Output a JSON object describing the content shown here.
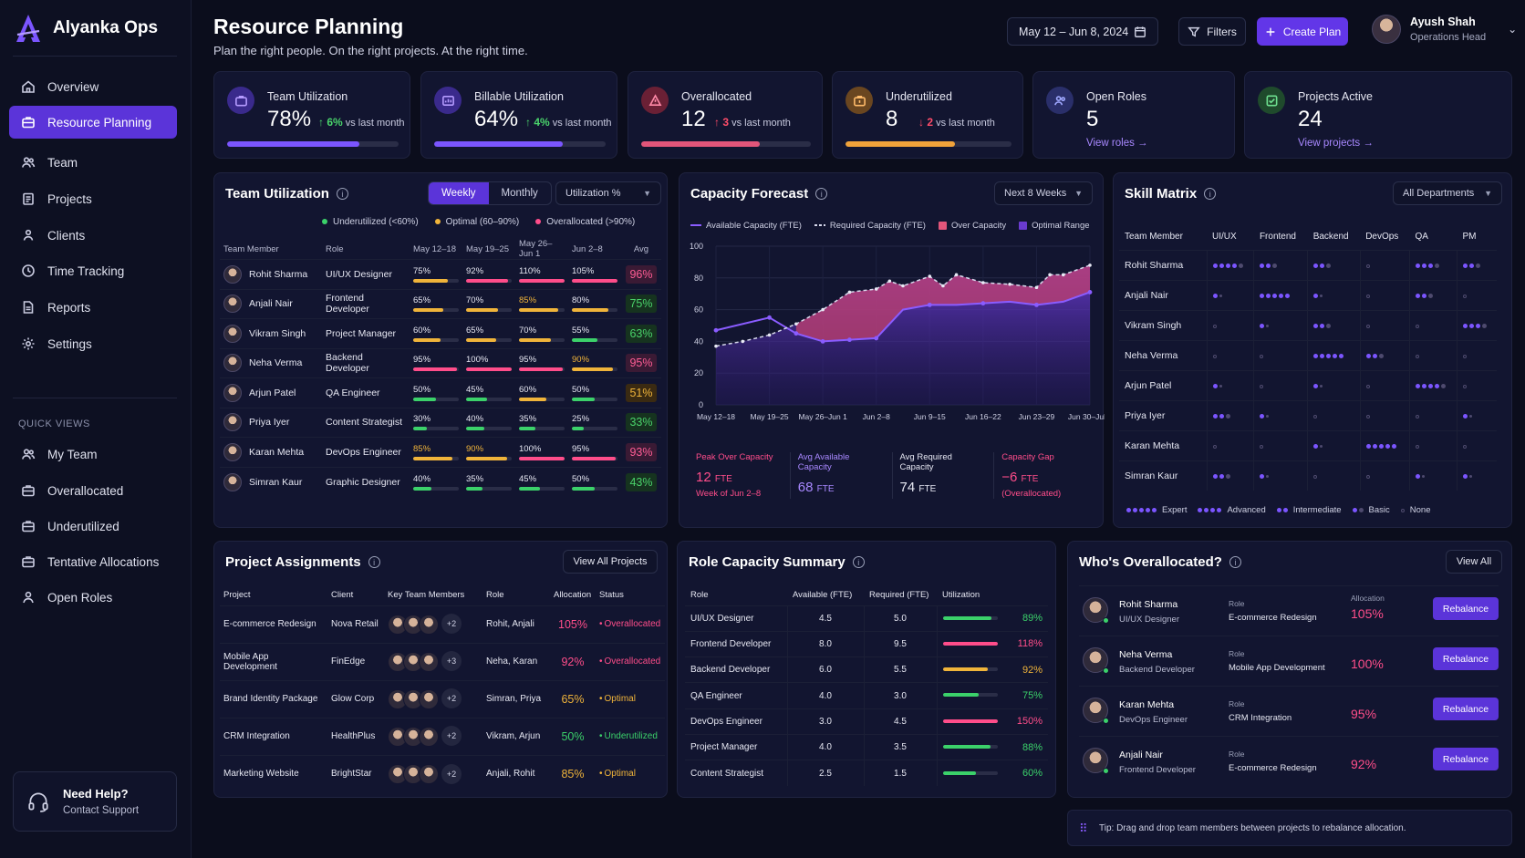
{
  "app": {
    "name": "Alyanka Ops"
  },
  "sidebar": {
    "items": [
      {
        "label": "Overview",
        "icon": "home-icon"
      },
      {
        "label": "Resource Planning",
        "icon": "briefcase-icon",
        "active": true
      },
      {
        "label": "Team",
        "icon": "users-icon"
      },
      {
        "label": "Projects",
        "icon": "clipboard-icon"
      },
      {
        "label": "Clients",
        "icon": "user-group-icon"
      },
      {
        "label": "Time Tracking",
        "icon": "clock-icon"
      },
      {
        "label": "Reports",
        "icon": "document-icon"
      },
      {
        "label": "Settings",
        "icon": "gear-icon"
      }
    ],
    "quick_views_title": "QUICK VIEWS",
    "quick_views": [
      {
        "label": "My Team",
        "icon": "users-icon"
      },
      {
        "label": "Overallocated",
        "icon": "briefcase-icon"
      },
      {
        "label": "Underutilized",
        "icon": "briefcase-icon"
      },
      {
        "label": "Tentative Allocations",
        "icon": "briefcase-icon"
      },
      {
        "label": "Open Roles",
        "icon": "user-icon"
      }
    ],
    "help_title": "Need Help?",
    "help_link": "Contact Support"
  },
  "header": {
    "title": "Resource Planning",
    "subtitle": "Plan the right people. On the right projects. At the right time.",
    "date_range": "May 12 – Jun 8, 2024",
    "filters_label": "Filters",
    "create_label": "Create Plan",
    "user_name": "Ayush Shah",
    "user_role": "Operations Head"
  },
  "kpis": [
    {
      "label": "Team Utilization",
      "value": "78%",
      "delta": "6%",
      "delta_dir": "up",
      "delta_note": "vs last month",
      "progress": 0.77,
      "color": "#7b55ff",
      "icon_bg": "#3a2a8c"
    },
    {
      "label": "Billable Utilization",
      "value": "64%",
      "delta": "4%",
      "delta_dir": "up",
      "delta_note": "vs last month",
      "progress": 0.75,
      "color": "#7b55ff",
      "icon_bg": "#3a2a8c"
    },
    {
      "label": "Overallocated",
      "value": "12",
      "delta": "3",
      "delta_dir": "up-red",
      "delta_note": "vs last month",
      "progress": 0.7,
      "color": "#e2557a",
      "icon_bg": "#6a2035"
    },
    {
      "label": "Underutilized",
      "value": "8",
      "delta": "2",
      "delta_dir": "down",
      "delta_note": "vs last month",
      "progress": 0.66,
      "color": "#f0a23a",
      "icon_bg": "#6a4620"
    },
    {
      "label": "Open Roles",
      "value": "5",
      "link": "View roles →",
      "icon_bg": "#2a2f6a"
    },
    {
      "label": "Projects Active",
      "value": "24",
      "link": "View projects →",
      "icon_bg": "#1f4a2c"
    }
  ],
  "team_utilization": {
    "title": "Team Utilization",
    "tabs": [
      "Weekly",
      "Monthly"
    ],
    "metric": "Utilization %",
    "legend": [
      {
        "label": "Underutilized (<60%)",
        "color": "#3bd16a"
      },
      {
        "label": "Optimal (60–90%)",
        "color": "#f0b43a"
      },
      {
        "label": "Overallocated (>90%)",
        "color": "#ff4d8a"
      }
    ],
    "columns": [
      "Team Member",
      "Role",
      "May 12–18",
      "May 19–25",
      "May 26–Jun 1",
      "Jun 2–8",
      "Avg"
    ],
    "rows": [
      {
        "name": "Rohit Sharma",
        "role": "UI/UX Designer",
        "weeks": [
          75,
          92,
          110,
          105
        ],
        "avg": "96%"
      },
      {
        "name": "Anjali Nair",
        "role": "Frontend Developer",
        "weeks": [
          65,
          70,
          85,
          80
        ],
        "avg": "75%"
      },
      {
        "name": "Vikram Singh",
        "role": "Project Manager",
        "weeks": [
          60,
          65,
          70,
          55
        ],
        "avg": "63%"
      },
      {
        "name": "Neha Verma",
        "role": "Backend Developer",
        "weeks": [
          95,
          100,
          95,
          90
        ],
        "avg": "95%"
      },
      {
        "name": "Arjun Patel",
        "role": "QA Engineer",
        "weeks": [
          50,
          45,
          60,
          50
        ],
        "avg": "51%"
      },
      {
        "name": "Priya Iyer",
        "role": "Content Strategist",
        "weeks": [
          30,
          40,
          35,
          25
        ],
        "avg": "33%"
      },
      {
        "name": "Karan Mehta",
        "role": "DevOps Engineer",
        "weeks": [
          85,
          90,
          100,
          95
        ],
        "avg": "93%"
      },
      {
        "name": "Simran Kaur",
        "role": "Graphic Designer",
        "weeks": [
          40,
          35,
          45,
          50
        ],
        "avg": "43%"
      }
    ]
  },
  "capacity_forecast": {
    "title": "Capacity Forecast",
    "range": "Next 8 Weeks",
    "legend": [
      "Available Capacity (FTE)",
      "Required Capacity (FTE)",
      "Over Capacity",
      "Optimal Range"
    ],
    "stats": [
      {
        "label": "Peak Over Capacity",
        "value": "12",
        "unit": "FTE",
        "sub": "Week of Jun 2–8",
        "color": "#ff4d8a"
      },
      {
        "label": "Avg Available Capacity",
        "value": "68",
        "unit": "FTE",
        "sub": "",
        "color": "#a888ff"
      },
      {
        "label": "Avg Required Capacity",
        "value": "74",
        "unit": "FTE",
        "sub": "",
        "color": "#e6e7f2"
      },
      {
        "label": "Capacity Gap",
        "value": "−6",
        "unit": "FTE",
        "sub": "(Overallocated)",
        "color": "#ff4d8a"
      }
    ]
  },
  "chart_data": {
    "type": "line",
    "title": "Capacity Forecast",
    "x": [
      "May 12–18",
      "May 19–25",
      "May 26–Jun 1",
      "Jun 2–8",
      "Jun 9–15",
      "Jun 16–22",
      "Jun 23–29",
      "Jun 30–Jul 6"
    ],
    "ylim": [
      0,
      100
    ],
    "yticks": [
      0,
      20,
      40,
      60,
      80,
      100
    ],
    "grid": true,
    "series": [
      {
        "name": "Available Capacity (FTE)",
        "color": "#8a5cff",
        "points": [
          [
            0,
            47
          ],
          [
            1,
            55
          ],
          [
            1.5,
            45
          ],
          [
            2,
            40
          ],
          [
            2.5,
            41
          ],
          [
            3,
            42
          ],
          [
            3.5,
            60
          ],
          [
            4,
            63
          ],
          [
            4.5,
            63
          ],
          [
            5,
            64
          ],
          [
            5.5,
            65
          ],
          [
            6,
            63
          ],
          [
            6.5,
            65
          ],
          [
            7,
            71
          ]
        ]
      },
      {
        "name": "Required Capacity (FTE)",
        "color": "#d7d9ec",
        "dashed": true,
        "points": [
          [
            0,
            37
          ],
          [
            0.5,
            40
          ],
          [
            1,
            44
          ],
          [
            1.5,
            51
          ],
          [
            2,
            60
          ],
          [
            2.5,
            71
          ],
          [
            3,
            73
          ],
          [
            3.25,
            78
          ],
          [
            3.5,
            75
          ],
          [
            4,
            81
          ],
          [
            4.25,
            75
          ],
          [
            4.5,
            82
          ],
          [
            5,
            77
          ],
          [
            5.5,
            76
          ],
          [
            6,
            74
          ],
          [
            6.25,
            82
          ],
          [
            6.5,
            82
          ],
          [
            7,
            88
          ]
        ]
      }
    ]
  },
  "skill_matrix": {
    "title": "Skill Matrix",
    "department": "All Departments",
    "columns": [
      "Team Member",
      "UI/UX",
      "Frontend",
      "Backend",
      "DevOps",
      "QA",
      "PM"
    ],
    "rows": [
      {
        "name": "Rohit Sharma",
        "levels": [
          4,
          2,
          2,
          0,
          3,
          2
        ]
      },
      {
        "name": "Anjali Nair",
        "levels": [
          1,
          5,
          1,
          0,
          2,
          0
        ]
      },
      {
        "name": "Vikram Singh",
        "levels": [
          0,
          1,
          2,
          0,
          0,
          3
        ]
      },
      {
        "name": "Neha Verma",
        "levels": [
          0,
          0,
          5,
          2,
          0,
          0
        ]
      },
      {
        "name": "Arjun Patel",
        "levels": [
          1,
          0,
          1,
          0,
          4,
          0
        ]
      },
      {
        "name": "Priya Iyer",
        "levels": [
          2,
          1,
          0,
          0,
          0,
          1
        ]
      },
      {
        "name": "Karan Mehta",
        "levels": [
          0,
          0,
          1,
          5,
          0,
          0
        ]
      },
      {
        "name": "Simran Kaur",
        "levels": [
          2,
          1,
          0,
          0,
          1,
          1
        ]
      }
    ],
    "legend": [
      "Expert",
      "Advanced",
      "Intermediate",
      "Basic",
      "None"
    ]
  },
  "project_assignments": {
    "title": "Project Assignments",
    "view_all": "View All Projects",
    "columns": [
      "Project",
      "Client",
      "Key Team Members",
      "Role",
      "Allocation",
      "Status"
    ],
    "rows": [
      {
        "project": "E-commerce Redesign",
        "client": "Nova Retail",
        "more": "+2",
        "role": "Rohit, Anjali",
        "alloc": "105%",
        "status": "Overallocated",
        "color": "#ff4d8a"
      },
      {
        "project": "Mobile App Development",
        "client": "FinEdge",
        "more": "+3",
        "role": "Neha, Karan",
        "alloc": "92%",
        "status": "Overallocated",
        "color": "#ff4d8a"
      },
      {
        "project": "Brand Identity Package",
        "client": "Glow Corp",
        "more": "+2",
        "role": "Simran, Priya",
        "alloc": "65%",
        "status": "Optimal",
        "color": "#f0b43a"
      },
      {
        "project": "CRM Integration",
        "client": "HealthPlus",
        "more": "+2",
        "role": "Vikram, Arjun",
        "alloc": "50%",
        "status": "Underutilized",
        "color": "#3bd16a"
      },
      {
        "project": "Marketing Website",
        "client": "BrightStar",
        "more": "+2",
        "role": "Anjali, Rohit",
        "alloc": "85%",
        "status": "Optimal",
        "color": "#f0b43a"
      }
    ]
  },
  "role_capacity": {
    "title": "Role Capacity Summary",
    "columns": [
      "Role",
      "Available (FTE)",
      "Required (FTE)",
      "Utilization"
    ],
    "rows": [
      {
        "role": "UI/UX Designer",
        "avail": "4.5",
        "req": "5.0",
        "util": "89%",
        "fill": 0.89,
        "color": "#3bd16a"
      },
      {
        "role": "Frontend Developer",
        "avail": "8.0",
        "req": "9.5",
        "util": "118%",
        "fill": 1.0,
        "color": "#ff4d8a"
      },
      {
        "role": "Backend Developer",
        "avail": "6.0",
        "req": "5.5",
        "util": "92%",
        "fill": 0.82,
        "color": "#f0b43a"
      },
      {
        "role": "QA Engineer",
        "avail": "4.0",
        "req": "3.0",
        "util": "75%",
        "fill": 0.65,
        "color": "#3bd16a"
      },
      {
        "role": "DevOps Engineer",
        "avail": "3.0",
        "req": "4.5",
        "util": "150%",
        "fill": 1.0,
        "color": "#ff4d8a"
      },
      {
        "role": "Project Manager",
        "avail": "4.0",
        "req": "3.5",
        "util": "88%",
        "fill": 0.88,
        "color": "#3bd16a"
      },
      {
        "role": "Content Strategist",
        "avail": "2.5",
        "req": "1.5",
        "util": "60%",
        "fill": 0.6,
        "color": "#3bd16a"
      }
    ]
  },
  "overallocated": {
    "title": "Who's Overallocated?",
    "view_all": "View All",
    "role_label": "Role",
    "alloc_label": "Allocation",
    "action": "Rebalance",
    "rows": [
      {
        "name": "Rohit Sharma",
        "role": "UI/UX Designer",
        "project": "E-commerce Redesign",
        "pct": "105%"
      },
      {
        "name": "Neha Verma",
        "role": "Backend Developer",
        "project": "Mobile App Development",
        "pct": "100%"
      },
      {
        "name": "Karan Mehta",
        "role": "DevOps Engineer",
        "project": "CRM Integration",
        "pct": "95%"
      },
      {
        "name": "Anjali Nair",
        "role": "Frontend Developer",
        "project": "E-commerce Redesign",
        "pct": "92%"
      }
    ],
    "tip": "Tip: Drag and drop team members between projects to rebalance allocation."
  }
}
